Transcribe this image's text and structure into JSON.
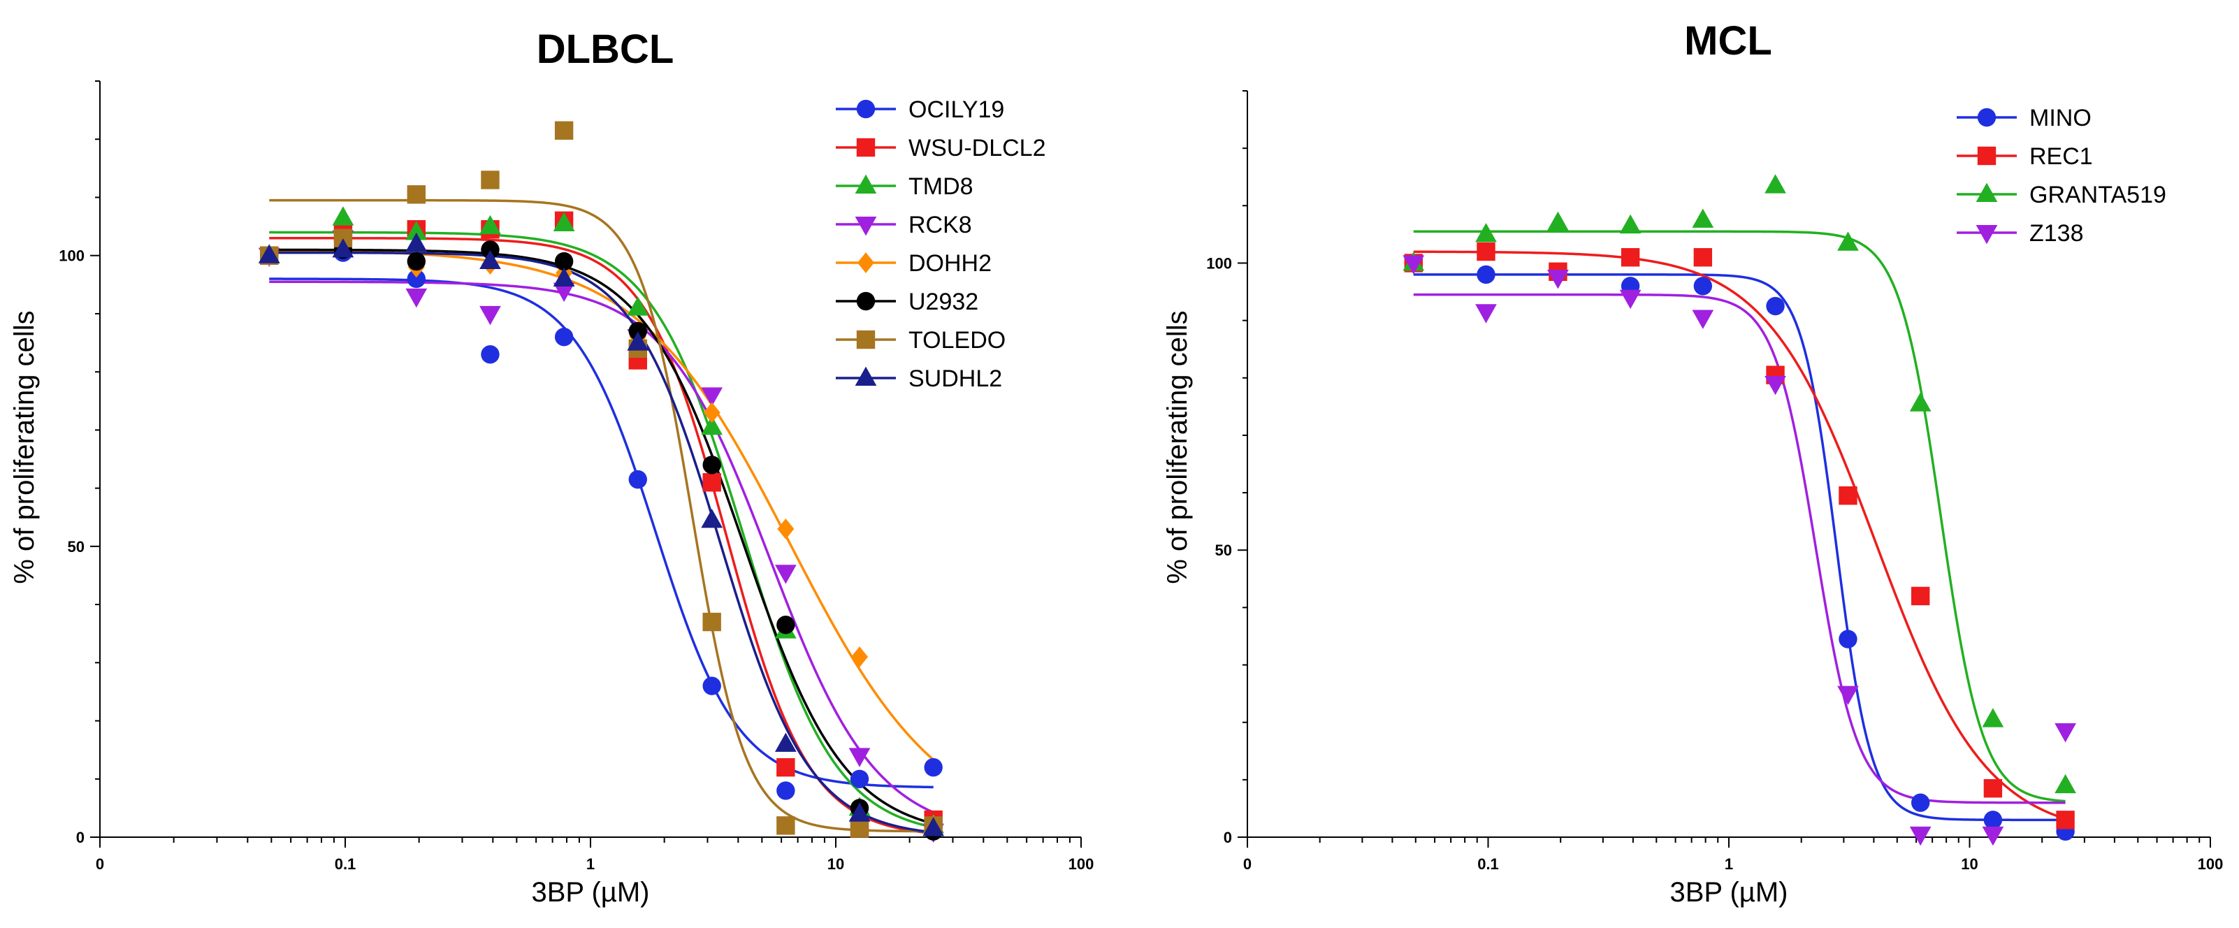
{
  "chart_data": [
    {
      "type": "scatter",
      "title": "DLBCL",
      "xlabel": "3BP (µM)",
      "ylabel": "% of proliferating cells",
      "xscale": "log",
      "xlim": [
        0.01,
        100
      ],
      "ylim": [
        0,
        130
      ],
      "xticks": [
        {
          "value": 0.01,
          "label": "0"
        },
        {
          "value": 0.1,
          "label": "0.1"
        },
        {
          "value": 1,
          "label": "1"
        },
        {
          "value": 10,
          "label": "10"
        },
        {
          "value": 100,
          "label": "100"
        }
      ],
      "yticks": [
        {
          "value": 0,
          "label": "0"
        },
        {
          "value": 50,
          "label": "50"
        },
        {
          "value": 100,
          "label": "100"
        }
      ],
      "grid": false,
      "legend": "top-right",
      "x": [
        0.049,
        0.098,
        0.195,
        0.39,
        0.78,
        1.56,
        3.125,
        6.25,
        12.5,
        25
      ],
      "series": [
        {
          "name": "OCILY19",
          "color": "#1f2fe0",
          "marker": "circle",
          "values": [
            100,
            100.5,
            96,
            83,
            86,
            61.5,
            26,
            8,
            10,
            12
          ],
          "fit": {
            "top": 96,
            "bottom": 8.5,
            "ec50": 1.85,
            "hill": 2.6
          }
        },
        {
          "name": "WSU-DLCL2",
          "color": "#ee1c1c",
          "marker": "square",
          "values": [
            100,
            104,
            104.5,
            104.5,
            106,
            82,
            61,
            12,
            1.5,
            3
          ],
          "fit": {
            "top": 103,
            "bottom": 0,
            "ec50": 3.6,
            "hill": 2.6
          }
        },
        {
          "name": "TMD8",
          "color": "#22b022",
          "marker": "triangle-up",
          "values": [
            100,
            106.5,
            104,
            105,
            105.5,
            91,
            70.5,
            35.5,
            5,
            2
          ],
          "fit": {
            "top": 104,
            "bottom": 0,
            "ec50": 4.2,
            "hill": 2.3
          }
        },
        {
          "name": "RCK8",
          "color": "#a020e0",
          "marker": "triangle-down",
          "values": [
            100,
            103,
            93,
            90,
            94,
            86,
            76,
            45.5,
            14,
            1
          ],
          "fit": {
            "top": 95.5,
            "bottom": 0,
            "ec50": 5.4,
            "hill": 2.0
          }
        },
        {
          "name": "DOHH2",
          "color": "#ff8c00",
          "marker": "diamond",
          "values": [
            100,
            102,
            98,
            98.5,
            97,
            86,
            73,
            53,
            31,
            2
          ],
          "fit": {
            "top": 101,
            "bottom": 0,
            "ec50": 6.5,
            "hill": 1.4
          }
        },
        {
          "name": "U2932",
          "color": "#000000",
          "marker": "circle",
          "values": [
            100,
            101,
            99,
            101,
            99,
            87,
            64,
            36.5,
            5,
            1
          ],
          "fit": {
            "top": 101,
            "bottom": 0,
            "ec50": 4.2,
            "hill": 2.1
          }
        },
        {
          "name": "TOLEDO",
          "color": "#a67520",
          "marker": "square",
          "values": [
            100,
            103,
            110.5,
            113,
            121.5,
            84,
            37,
            2,
            1.5,
            2
          ],
          "fit": {
            "top": 109.5,
            "bottom": 1,
            "ec50": 2.6,
            "hill": 4.0
          }
        },
        {
          "name": "SUDHL2",
          "color": "#1a1f8c",
          "marker": "triangle-up",
          "values": [
            100,
            101,
            102,
            99,
            96,
            85,
            54.5,
            16,
            4,
            1.5
          ],
          "fit": {
            "top": 100.5,
            "bottom": 0,
            "ec50": 3.4,
            "hill": 2.4
          }
        }
      ]
    },
    {
      "type": "scatter",
      "title": "MCL",
      "xlabel": "3BP (µM)",
      "ylabel": "% of proliferating cells",
      "xscale": "log",
      "xlim": [
        0.01,
        100
      ],
      "ylim": [
        0,
        130
      ],
      "xticks": [
        {
          "value": 0.01,
          "label": "0"
        },
        {
          "value": 0.1,
          "label": "0.1"
        },
        {
          "value": 1,
          "label": "1"
        },
        {
          "value": 10,
          "label": "10"
        },
        {
          "value": 100,
          "label": "100"
        }
      ],
      "yticks": [
        {
          "value": 0,
          "label": "0"
        },
        {
          "value": 50,
          "label": "50"
        },
        {
          "value": 100,
          "label": "100"
        }
      ],
      "grid": false,
      "legend": "top-right",
      "x": [
        0.049,
        0.098,
        0.195,
        0.39,
        0.78,
        1.56,
        3.125,
        6.25,
        12.5,
        25
      ],
      "series": [
        {
          "name": "MINO",
          "color": "#1f2fe0",
          "marker": "circle",
          "values": [
            100,
            98,
            98.5,
            96,
            96,
            92.5,
            34.5,
            6,
            3,
            1
          ],
          "fit": {
            "top": 98,
            "bottom": 3,
            "ec50": 2.8,
            "hill": 6.0
          }
        },
        {
          "name": "REC1",
          "color": "#ee1c1c",
          "marker": "square",
          "values": [
            100,
            102,
            98.5,
            101,
            101,
            80.5,
            59.5,
            42,
            8.5,
            3
          ],
          "fit": {
            "top": 102,
            "bottom": 0,
            "ec50": 4.1,
            "hill": 1.9
          }
        },
        {
          "name": "GRANTA519",
          "color": "#22b022",
          "marker": "triangle-up",
          "values": [
            100,
            105,
            107,
            106.5,
            107.5,
            113.5,
            103.5,
            75.5,
            20.5,
            9
          ],
          "fit": {
            "top": 105.5,
            "bottom": 6,
            "ec50": 7.6,
            "hill": 5.0
          }
        },
        {
          "name": "Z138",
          "color": "#a020e0",
          "marker": "triangle-down",
          "values": [
            100,
            91.5,
            97.5,
            94,
            90.5,
            79,
            25,
            0.5,
            0.5,
            18.5
          ],
          "fit": {
            "top": 94.5,
            "bottom": 6,
            "ec50": 2.3,
            "hill": 5.0
          }
        }
      ]
    }
  ]
}
